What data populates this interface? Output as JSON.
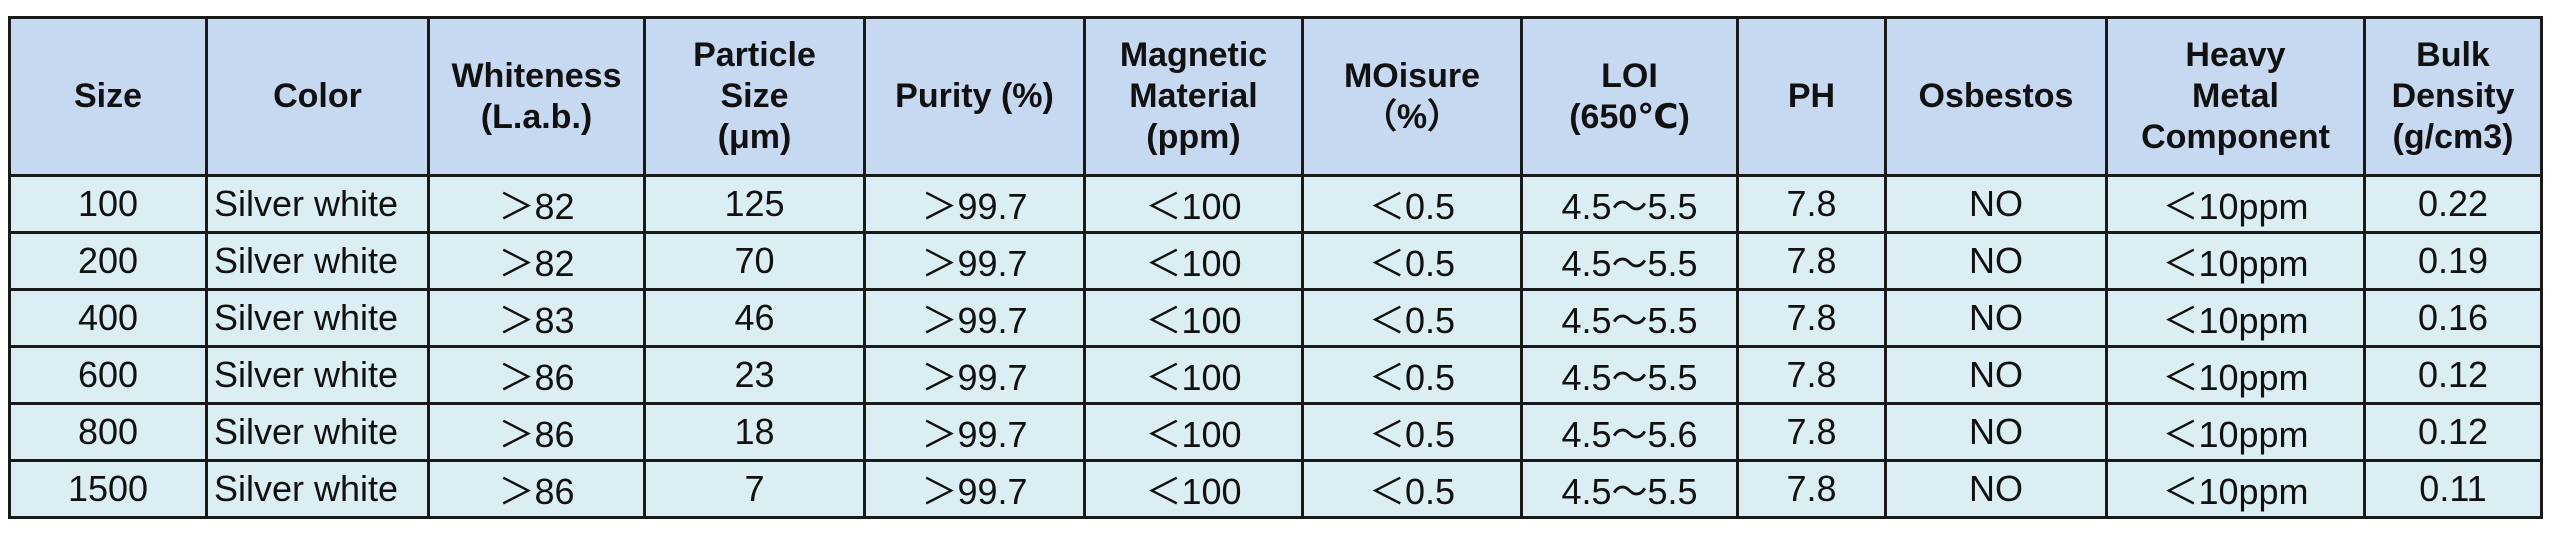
{
  "table": {
    "headers": [
      "Size",
      "Color",
      "Whiteness\n(L.a.b.)",
      "Particle\nSize\n(μm)",
      "Purity (%)",
      "Magnetic\nMaterial\n(ppm)",
      "MOisure\n（%）",
      "LOI\n(650℃)",
      "PH",
      "Osbestos",
      "Heavy\nMetal\nComponent",
      "Bulk\nDensity\n(g/cm3)"
    ],
    "rows": [
      [
        "100",
        "Silver white",
        "＞82",
        "125",
        "＞99.7",
        "＜100",
        "＜0.5",
        "4.5～5.5",
        "7.8",
        "NO",
        "＜10ppm",
        "0.22"
      ],
      [
        "200",
        "Silver white",
        "＞82",
        "70",
        "＞99.7",
        "＜100",
        "＜0.5",
        "4.5～5.5",
        "7.8",
        "NO",
        "＜10ppm",
        "0.19"
      ],
      [
        "400",
        "Silver white",
        "＞83",
        "46",
        "＞99.7",
        "＜100",
        "＜0.5",
        "4.5～5.5",
        "7.8",
        "NO",
        "＜10ppm",
        "0.16"
      ],
      [
        "600",
        "Silver white",
        "＞86",
        "23",
        "＞99.7",
        "＜100",
        "＜0.5",
        "4.5～5.5",
        "7.8",
        "NO",
        "＜10ppm",
        "0.12"
      ],
      [
        "800",
        "Silver white",
        "＞86",
        "18",
        "＞99.7",
        "＜100",
        "＜0.5",
        "4.5～5.6",
        "7.8",
        "NO",
        "＜10ppm",
        "0.12"
      ],
      [
        "1500",
        "Silver white",
        "＞86",
        "7",
        "＞99.7",
        "＜100",
        "＜0.5",
        "4.5～5.5",
        "7.8",
        "NO",
        "＜10ppm",
        "0.11"
      ]
    ]
  }
}
